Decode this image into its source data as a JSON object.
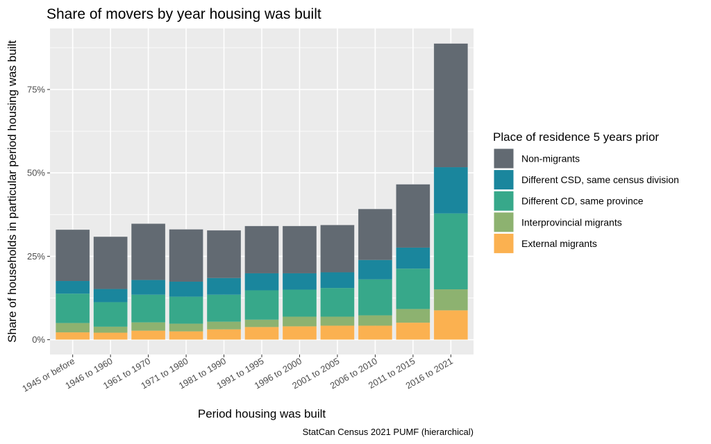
{
  "chart_data": {
    "type": "bar",
    "stacked": true,
    "title": "Share of movers by year housing was built",
    "xlabel": "Period housing was built",
    "ylabel": "Share of households in particular period housing was built",
    "caption": "StatCan Census 2021 PUMF (hierarchical)",
    "categories": [
      "1945 or before",
      "1946 to 1960",
      "1961 to 1970",
      "1971 to 1980",
      "1981 to 1990",
      "1991 to 1995",
      "1996 to 2000",
      "2001 to 2005",
      "2006 to 2010",
      "2011 to 2015",
      "2016 to 2021"
    ],
    "y_ticks": [
      0,
      25,
      50,
      75
    ],
    "y_tick_labels": [
      "0%",
      "25%",
      "50%",
      "75%"
    ],
    "ylim": [
      -4.44,
      93.3
    ],
    "grid": true,
    "legend": {
      "title": "Place of residence 5 years prior",
      "position": "right"
    },
    "series": [
      {
        "name": "Non-migrants",
        "color": "#626a72",
        "values": [
          15.4,
          15.7,
          16.9,
          15.7,
          14.3,
          14.2,
          14.2,
          14.2,
          15.3,
          19.0,
          37.1
        ]
      },
      {
        "name": "Different CSD, same census division",
        "color": "#1a869d",
        "values": [
          3.8,
          3.95,
          4.4,
          4.5,
          5.0,
          5.1,
          4.9,
          4.7,
          5.8,
          6.3,
          13.85
        ]
      },
      {
        "name": "Different CD, same province",
        "color": "#37a88a",
        "values": [
          8.8,
          7.35,
          8.3,
          8.1,
          8.1,
          8.8,
          8.1,
          8.6,
          10.8,
          12.1,
          22.75
        ]
      },
      {
        "name": "Interprovincial migrants",
        "color": "#8db270",
        "values": [
          2.8,
          1.8,
          2.5,
          2.3,
          2.3,
          2.2,
          2.9,
          2.7,
          3.1,
          4.1,
          6.3
        ]
      },
      {
        "name": "External migrants",
        "color": "#fbb150",
        "values": [
          2.2,
          2.1,
          2.7,
          2.5,
          3.1,
          3.8,
          4.0,
          4.2,
          4.2,
          5.1,
          8.8
        ]
      }
    ],
    "stack_order_bottom_to_top": [
      "External migrants",
      "Interprovincial migrants",
      "Different CD, same province",
      "Different CSD, same census division",
      "Non-migrants"
    ]
  }
}
